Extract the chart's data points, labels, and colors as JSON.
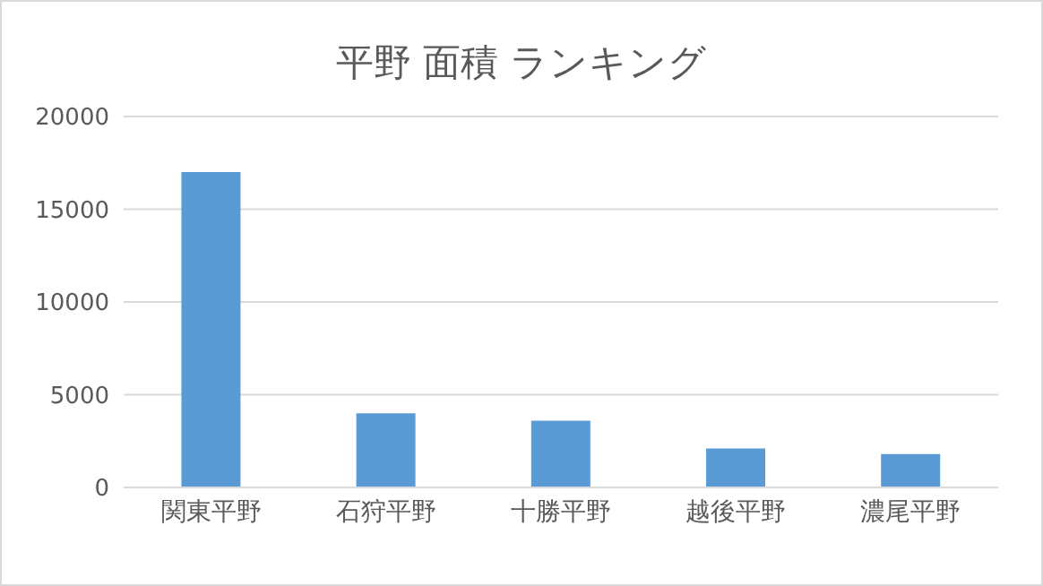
{
  "chart_data": {
    "type": "bar",
    "title": "平野 面積 ランキング",
    "categories": [
      "関東平野",
      "石狩平野",
      "十勝平野",
      "越後平野",
      "濃尾平野"
    ],
    "values": [
      17000,
      4000,
      3600,
      2100,
      1800
    ],
    "color": "#5b9bd5",
    "ylim": [
      0,
      20000
    ],
    "yticks": [
      0,
      5000,
      10000,
      15000,
      20000
    ],
    "grid": "y"
  }
}
